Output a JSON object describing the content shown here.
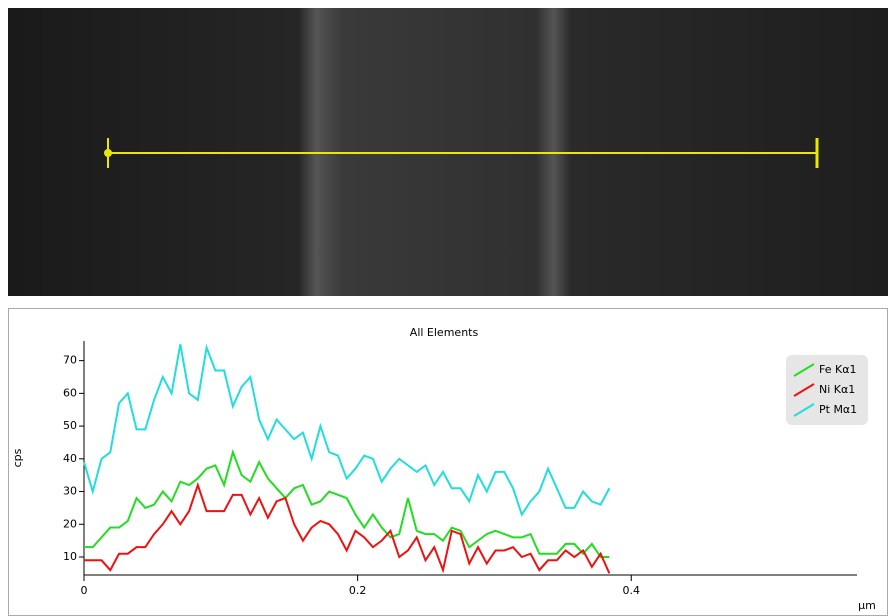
{
  "chart_data": {
    "type": "line",
    "title": "All Elements",
    "x_label": "µm",
    "y_label": "cps",
    "x": [
      0,
      0.0064,
      0.0128,
      0.0192,
      0.0256,
      0.032,
      0.0384,
      0.0448,
      0.0512,
      0.0576,
      0.064,
      0.0704,
      0.0768,
      0.0832,
      0.0896,
      0.096,
      0.1024,
      0.1088,
      0.1152,
      0.1216,
      0.128,
      0.1344,
      0.1408,
      0.1472,
      0.1536,
      0.16,
      0.1664,
      0.1728,
      0.1792,
      0.1856,
      0.192,
      0.1984,
      0.2048,
      0.2112,
      0.2176,
      0.224,
      0.2304,
      0.2368,
      0.2432,
      0.2496,
      0.256,
      0.2624,
      0.2688,
      0.2752,
      0.2816,
      0.288,
      0.2944,
      0.3008,
      0.3072,
      0.3136,
      0.32,
      0.3264,
      0.3328,
      0.3392,
      0.3456,
      0.352,
      0.3584,
      0.3648,
      0.3712,
      0.3776,
      0.384
    ],
    "series": [
      {
        "name": "Fe Kα1",
        "color": "#22dd22",
        "values": [
          13,
          13,
          16,
          19,
          19,
          21,
          28,
          25,
          26,
          30,
          27,
          33,
          32,
          34,
          37,
          38,
          32,
          42,
          35,
          33,
          39,
          34,
          31,
          28,
          31,
          32,
          26,
          27,
          30,
          29,
          28,
          23,
          19,
          23,
          19,
          16,
          17,
          28,
          18,
          17,
          17,
          15,
          19,
          18,
          13,
          15,
          17,
          18,
          17,
          16,
          16,
          17,
          11,
          11,
          11,
          14,
          14,
          11,
          14,
          10,
          10
        ]
      },
      {
        "name": "Ni Kα1",
        "color": "#ee1111",
        "values": [
          9,
          9,
          9,
          6,
          11,
          11,
          13,
          13,
          17,
          20,
          24,
          20,
          24,
          32,
          24,
          24,
          24,
          29,
          29,
          23,
          28,
          22,
          27,
          28,
          20,
          15,
          19,
          21,
          20,
          17,
          12,
          18,
          16,
          13,
          15,
          18,
          10,
          12,
          16,
          9,
          13,
          6,
          18,
          17,
          8,
          13,
          8,
          12,
          12,
          13,
          10,
          11,
          6,
          9,
          9,
          12,
          10,
          12,
          7,
          11,
          5
        ]
      },
      {
        "name": "Pt Mα1",
        "color": "#22dddd",
        "values": [
          39,
          30,
          40,
          42,
          57,
          60,
          49,
          49,
          58,
          65,
          60,
          75,
          60,
          58,
          74,
          67,
          67,
          56,
          62,
          65,
          52,
          46,
          52,
          49,
          46,
          48,
          40,
          50,
          42,
          41,
          34,
          37,
          41,
          40,
          33,
          37,
          40,
          38,
          36,
          38,
          32,
          36,
          31,
          31,
          27,
          35,
          30,
          36,
          36,
          31,
          23,
          27,
          30,
          37,
          31,
          25,
          25,
          30,
          27,
          26,
          31
        ]
      }
    ],
    "xlim": [
      0,
      0.565
    ],
    "xticks": [
      0,
      0.2,
      0.4
    ],
    "ylim": [
      4.5,
      76
    ],
    "yticks": [
      10,
      20,
      30,
      40,
      50,
      60,
      70
    ],
    "legend": "top-right"
  }
}
